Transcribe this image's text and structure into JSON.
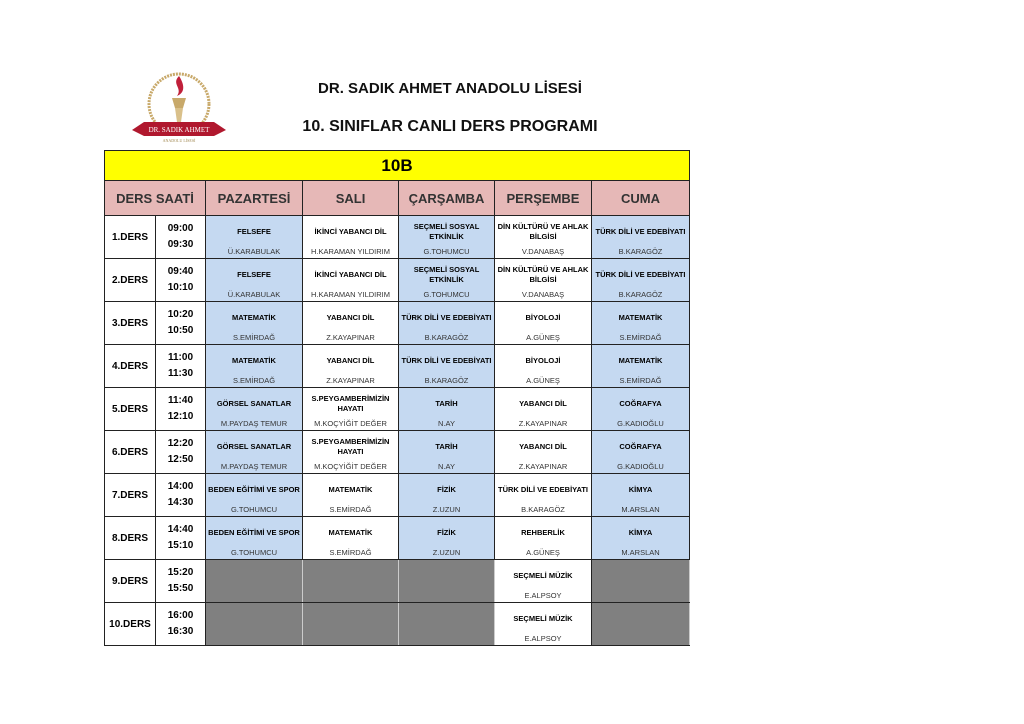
{
  "header": {
    "school": "DR. SADIK AHMET  ANADOLU LİSESİ",
    "title": "10. SINIFLAR CANLI DERS PROGRAMI",
    "logo_text": "DR. SADIK AHMET ANADOLU LİSESİ"
  },
  "table": {
    "class_name": "10B",
    "columns": [
      "DERS SAATİ",
      "PAZARTESİ",
      "SALI",
      "ÇARŞAMBA",
      "PERŞEMBE",
      "CUMA"
    ],
    "colors": {
      "header": "#e6b8b7",
      "class_bar": "#ffff00",
      "blue": "#c5d9f1",
      "empty": "#808080"
    },
    "rows": [
      {
        "lesson": "1.DERS",
        "start": "09:00",
        "end": "09:30",
        "cells": [
          [
            "FELSEFE",
            "Ü.KARABULAK"
          ],
          [
            "İKİNCİ YABANCI DİL",
            "H.KARAMAN YILDIRIM"
          ],
          [
            "SEÇMELİ SOSYAL ETKİNLİK",
            "G.TOHUMCU"
          ],
          [
            "DİN KÜLTÜRÜ VE AHLAK BİLGİSİ",
            "V.DANABAŞ"
          ],
          [
            "TÜRK DİLİ VE EDEBİYATI",
            "B.KARAGÖZ"
          ]
        ]
      },
      {
        "lesson": "2.DERS",
        "start": "09:40",
        "end": "10:10",
        "cells": [
          [
            "FELSEFE",
            "Ü.KARABULAK"
          ],
          [
            "İKİNCİ YABANCI DİL",
            "H.KARAMAN YILDIRIM"
          ],
          [
            "SEÇMELİ SOSYAL ETKİNLİK",
            "G.TOHUMCU"
          ],
          [
            "DİN KÜLTÜRÜ VE AHLAK BİLGİSİ",
            "V.DANABAŞ"
          ],
          [
            "TÜRK DİLİ VE EDEBİYATI",
            "B.KARAGÖZ"
          ]
        ]
      },
      {
        "lesson": "3.DERS",
        "start": "10:20",
        "end": "10:50",
        "cells": [
          [
            "MATEMATİK",
            "S.EMİRDAĞ"
          ],
          [
            "YABANCI DİL",
            "Z.KAYAPINAR"
          ],
          [
            "TÜRK DİLİ VE EDEBİYATI",
            "B.KARAGÖZ"
          ],
          [
            "BİYOLOJİ",
            "A.GÜNEŞ"
          ],
          [
            "MATEMATİK",
            "S.EMİRDAĞ"
          ]
        ]
      },
      {
        "lesson": "4.DERS",
        "start": "11:00",
        "end": "11:30",
        "cells": [
          [
            "MATEMATİK",
            "S.EMİRDAĞ"
          ],
          [
            "YABANCI DİL",
            "Z.KAYAPINAR"
          ],
          [
            "TÜRK DİLİ VE EDEBİYATI",
            "B.KARAGÖZ"
          ],
          [
            "BİYOLOJİ",
            "A.GÜNEŞ"
          ],
          [
            "MATEMATİK",
            "S.EMİRDAĞ"
          ]
        ]
      },
      {
        "lesson": "5.DERS",
        "start": "11:40",
        "end": "12:10",
        "cells": [
          [
            "GÖRSEL SANATLAR",
            "M.PAYDAŞ TEMUR"
          ],
          [
            "S.PEYGAMBERİMİZİN HAYATI",
            "M.KOÇYİĞİT DEĞER"
          ],
          [
            "TARİH",
            "N.AY"
          ],
          [
            "YABANCI DİL",
            "Z.KAYAPINAR"
          ],
          [
            "COĞRAFYA",
            "G.KADIOĞLU"
          ]
        ]
      },
      {
        "lesson": "6.DERS",
        "start": "12:20",
        "end": "12:50",
        "cells": [
          [
            "GÖRSEL SANATLAR",
            "M.PAYDAŞ TEMUR"
          ],
          [
            "S.PEYGAMBERİMİZİN HAYATI",
            "M.KOÇYİĞİT DEĞER"
          ],
          [
            "TARİH",
            "N.AY"
          ],
          [
            "YABANCI DİL",
            "Z.KAYAPINAR"
          ],
          [
            "COĞRAFYA",
            "G.KADIOĞLU"
          ]
        ]
      },
      {
        "lesson": "7.DERS",
        "start": "14:00",
        "end": "14:30",
        "cells": [
          [
            "BEDEN EĞİTİMİ VE SPOR",
            "G.TOHUMCU"
          ],
          [
            "MATEMATİK",
            "S.EMİRDAĞ"
          ],
          [
            "FİZİK",
            "Z.UZUN"
          ],
          [
            "TÜRK DİLİ VE EDEBİYATI",
            "B.KARAGÖZ"
          ],
          [
            "KİMYA",
            "M.ARSLAN"
          ]
        ]
      },
      {
        "lesson": "8.DERS",
        "start": "14:40",
        "end": "15:10",
        "cells": [
          [
            "BEDEN EĞİTİMİ VE SPOR",
            "G.TOHUMCU"
          ],
          [
            "MATEMATİK",
            "S.EMİRDAĞ"
          ],
          [
            "FİZİK",
            "Z.UZUN"
          ],
          [
            "REHBERLİK",
            "A.GÜNEŞ"
          ],
          [
            "KİMYA",
            "M.ARSLAN"
          ]
        ]
      },
      {
        "lesson": "9.DERS",
        "start": "15:20",
        "end": "15:50",
        "cells": [
          null,
          null,
          null,
          [
            "SEÇMELİ MÜZİK",
            "E.ALPSOY"
          ],
          null
        ]
      },
      {
        "lesson": "10.DERS",
        "start": "16:00",
        "end": "16:30",
        "cells": [
          null,
          null,
          null,
          [
            "SEÇMELİ MÜZİK",
            "E.ALPSOY"
          ],
          null
        ]
      }
    ]
  }
}
